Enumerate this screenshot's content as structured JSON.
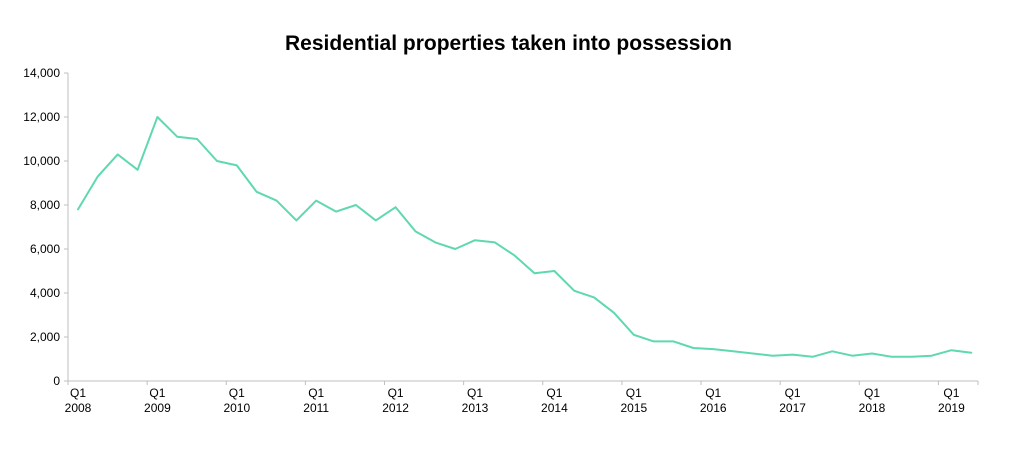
{
  "chart_data": {
    "type": "line",
    "title": "Residential properties taken into possession",
    "xlabel": "",
    "ylabel": "",
    "ylim": [
      0,
      14000
    ],
    "yticks": [
      0,
      2000,
      4000,
      6000,
      8000,
      10000,
      12000,
      14000
    ],
    "ytick_labels": [
      "0",
      "2,000",
      "4,000",
      "6,000",
      "8,000",
      "10,000",
      "12,000",
      "14,000"
    ],
    "xtick_labels": [
      {
        "quarter": "Q1",
        "year": "2008",
        "index": 0
      },
      {
        "quarter": "Q1",
        "year": "2009",
        "index": 4
      },
      {
        "quarter": "Q1",
        "year": "2010",
        "index": 8
      },
      {
        "quarter": "Q1",
        "year": "2011",
        "index": 12
      },
      {
        "quarter": "Q1",
        "year": "2012",
        "index": 16
      },
      {
        "quarter": "Q1",
        "year": "2013",
        "index": 20
      },
      {
        "quarter": "Q1",
        "year": "2014",
        "index": 24
      },
      {
        "quarter": "Q1",
        "year": "2015",
        "index": 28
      },
      {
        "quarter": "Q1",
        "year": "2016",
        "index": 32
      },
      {
        "quarter": "Q1",
        "year": "2017",
        "index": 36
      },
      {
        "quarter": "Q1",
        "year": "2018",
        "index": 40
      },
      {
        "quarter": "Q1",
        "year": "2019",
        "index": 44
      }
    ],
    "grid": false,
    "legend": "none",
    "series": [
      {
        "name": "Residential properties taken into possession",
        "color": "#5fd8b2",
        "values": [
          7800,
          9300,
          10300,
          9600,
          12000,
          11100,
          11000,
          10000,
          9800,
          8600,
          8200,
          7300,
          8200,
          7700,
          8000,
          7300,
          7900,
          6800,
          6300,
          6000,
          6400,
          6300,
          5700,
          4900,
          5000,
          4100,
          3800,
          3100,
          2100,
          1800,
          1800,
          1500,
          1450,
          1350,
          1250,
          1150,
          1200,
          1100,
          1350,
          1150,
          1250,
          1100,
          1100,
          1150,
          1400,
          1280
        ]
      }
    ]
  }
}
